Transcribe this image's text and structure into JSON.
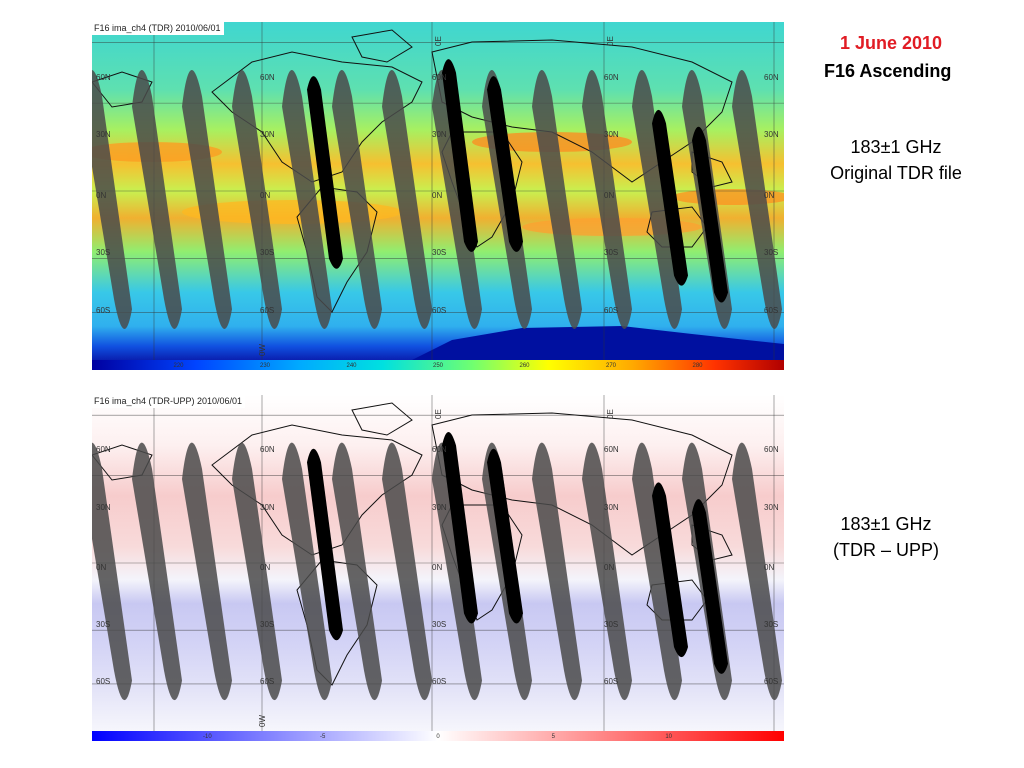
{
  "slide": {
    "date": "1 June 2010",
    "subtitle": "F16 Ascending",
    "top_desc_line1": "183±1 GHz",
    "top_desc_line2": "Original TDR file",
    "bottom_desc_line1": "183±1 GHz",
    "bottom_desc_line2": "(TDR – UPP)"
  },
  "top_map": {
    "title": "F16 ima_ch4 (TDR) 2010/06/01",
    "lat_labels": [
      "60N",
      "30N",
      "0N",
      "30S",
      "60S"
    ],
    "lon_labels": [
      "0E",
      "0E",
      "0W"
    ],
    "colorbar_ticks": [
      "220",
      "230",
      "240",
      "250",
      "260",
      "270",
      "280"
    ],
    "colorbar_colors": [
      "#0000a0",
      "#0044ff",
      "#00aaff",
      "#00e0e0",
      "#70ff70",
      "#ffff00",
      "#ffaa00",
      "#ff3300",
      "#b00000"
    ]
  },
  "bottom_map": {
    "title": "F16 ima_ch4 (TDR-UPP) 2010/06/01",
    "lat_labels": [
      "60N",
      "30N",
      "0N",
      "30S",
      "60S"
    ],
    "lon_labels": [
      "0E",
      "0E",
      "0W"
    ],
    "colorbar_ticks": [
      "-10",
      "-5",
      "0",
      "5",
      "10"
    ],
    "colorbar_colors": [
      "#0000ff",
      "#8080ff",
      "#ffffff",
      "#ff8080",
      "#ff0000"
    ]
  }
}
